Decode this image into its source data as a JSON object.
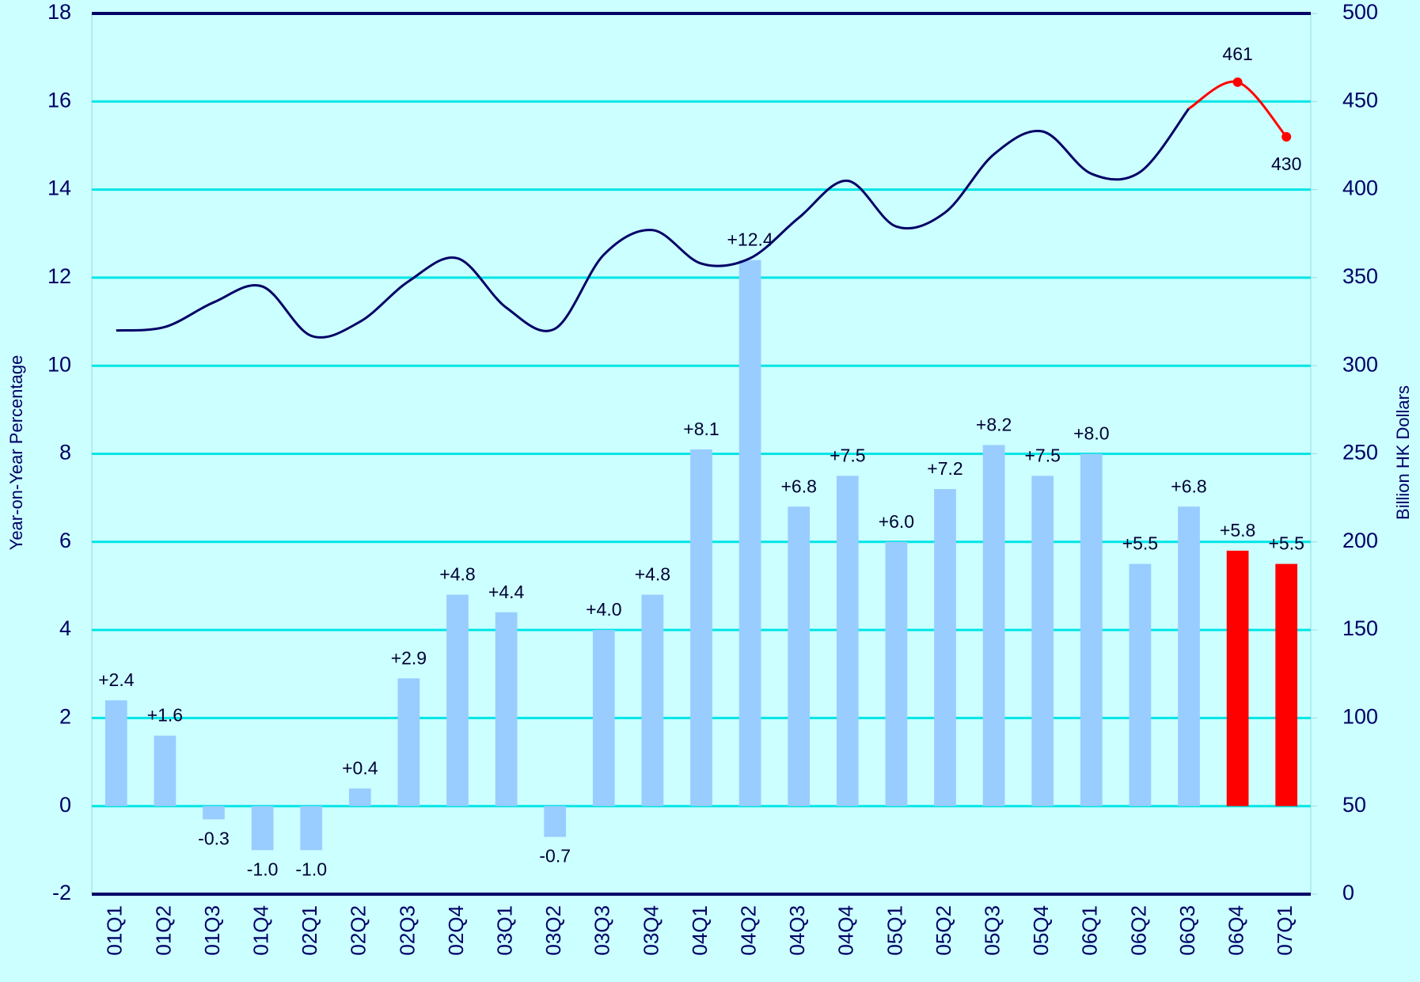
{
  "chart_data": {
    "type": "bar",
    "y_label": "Year-on-Year Percentage",
    "y2_label": "Billion HK Dollars",
    "categories": [
      "01Q1",
      "01Q2",
      "01Q3",
      "01Q4",
      "02Q1",
      "02Q2",
      "02Q3",
      "02Q4",
      "03Q1",
      "03Q2",
      "03Q3",
      "03Q4",
      "04Q1",
      "04Q2",
      "04Q3",
      "04Q4",
      "05Q1",
      "05Q2",
      "05Q3",
      "05Q4",
      "06Q1",
      "06Q2",
      "06Q3",
      "06Q4",
      "07Q1"
    ],
    "ylim": [
      -2,
      18
    ],
    "yticks": [
      -2,
      0,
      2,
      4,
      6,
      8,
      10,
      12,
      14,
      16,
      18
    ],
    "y2lim": [
      0,
      500
    ],
    "y2ticks": [
      0,
      50,
      100,
      150,
      200,
      250,
      300,
      350,
      400,
      450,
      500
    ],
    "grid": true,
    "grid_color": "#00e5e5",
    "series": [
      {
        "type": "bar",
        "values": [
          2.4,
          1.6,
          -0.3,
          -1.0,
          -1.0,
          0.4,
          2.9,
          4.8,
          4.4,
          -0.7,
          4.0,
          4.8,
          8.1,
          12.4,
          6.8,
          7.5,
          6.0,
          7.2,
          8.2,
          7.5,
          8.0,
          5.5,
          6.8,
          5.8,
          5.5
        ],
        "value_labels": [
          "+2.4",
          "+1.6",
          "-0.3",
          "-1.0",
          "-1.0",
          "+0.4",
          "+2.9",
          "+4.8",
          "+4.4",
          "-0.7",
          "+4.0",
          "+4.8",
          "+8.1",
          "+12.4",
          "+6.8",
          "+7.5",
          "+6.0",
          "+7.2",
          "+8.2",
          "+7.5",
          "+8.0",
          "+5.5",
          "+6.8",
          "+5.8",
          "+5.5"
        ],
        "colors": [
          "#99ccff",
          "#99ccff",
          "#99ccff",
          "#99ccff",
          "#99ccff",
          "#99ccff",
          "#99ccff",
          "#99ccff",
          "#99ccff",
          "#99ccff",
          "#99ccff",
          "#99ccff",
          "#99ccff",
          "#99ccff",
          "#99ccff",
          "#99ccff",
          "#99ccff",
          "#99ccff",
          "#99ccff",
          "#99ccff",
          "#99ccff",
          "#99ccff",
          "#99ccff",
          "#ff0000",
          "#ff0000"
        ]
      },
      {
        "type": "line",
        "axis": "y2",
        "color": "#000066",
        "values": [
          320,
          322,
          336,
          345,
          317,
          325,
          348,
          361,
          333,
          321,
          363,
          377,
          358,
          361,
          384,
          405,
          379,
          387,
          420,
          433,
          409,
          410,
          446,
          null,
          null
        ]
      },
      {
        "type": "line",
        "axis": "y2",
        "color": "#ff0000",
        "markers": true,
        "values": [
          null,
          null,
          null,
          null,
          null,
          null,
          null,
          null,
          null,
          null,
          null,
          null,
          null,
          null,
          null,
          null,
          null,
          null,
          null,
          null,
          null,
          null,
          446,
          461,
          430
        ],
        "value_labels": [
          null,
          null,
          null,
          null,
          null,
          null,
          null,
          null,
          null,
          null,
          null,
          null,
          null,
          null,
          null,
          null,
          null,
          null,
          null,
          null,
          null,
          null,
          null,
          "461",
          "430"
        ]
      }
    ]
  }
}
